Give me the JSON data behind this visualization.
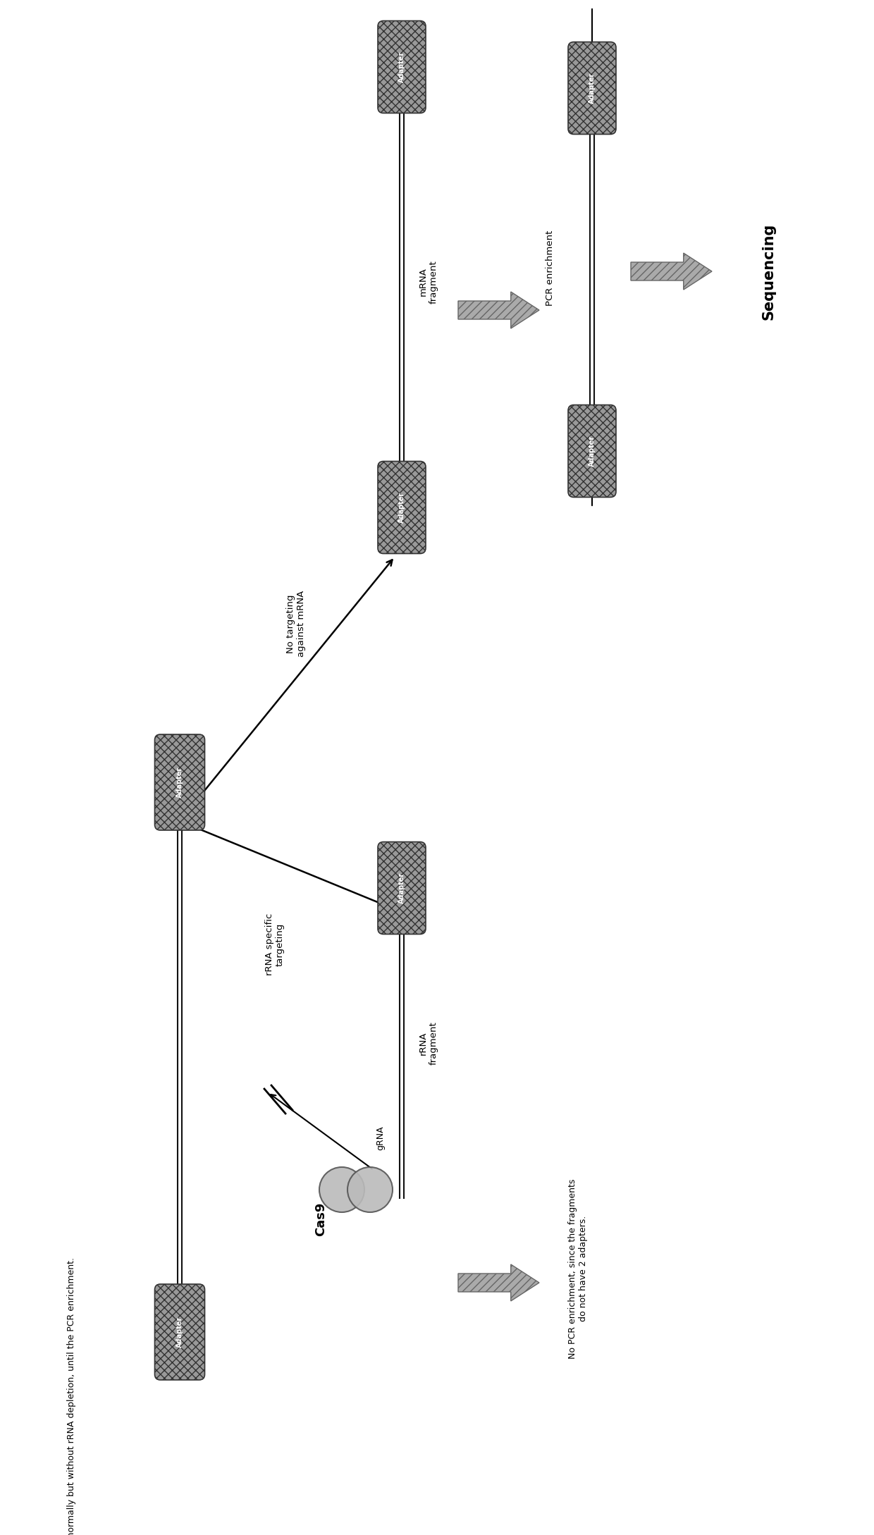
{
  "bg_color": "#ffffff",
  "adapter_facecolor": "#999999",
  "adapter_edgecolor": "#333333",
  "line_color": "#111111",
  "arrow_color": "#888888",
  "text_color": "#000000",
  "label_adapter": "Adapter",
  "label_cas9": "Cas9",
  "label_grna": "gRNA",
  "label_rrna_targeting": "rRNA specific\ntargeting",
  "label_no_targeting": "No targeting\nagainst mRNA",
  "label_rrna_fragment": "rRNA\nfragment",
  "label_mrna_fragment": "mRNA\nfragment",
  "label_no_pcr": "No PCR enrichment, since the fragments\ndo not have 2 adapters.",
  "label_pcr_enrichment": "PCR enrichment",
  "label_sequencing": "Sequencing",
  "bullet_text": "Library construction is performed normally but without rRNA depletion, until the PCR enrichment.",
  "fig_width": 12.4,
  "fig_height": 21.78,
  "dpi": 100
}
